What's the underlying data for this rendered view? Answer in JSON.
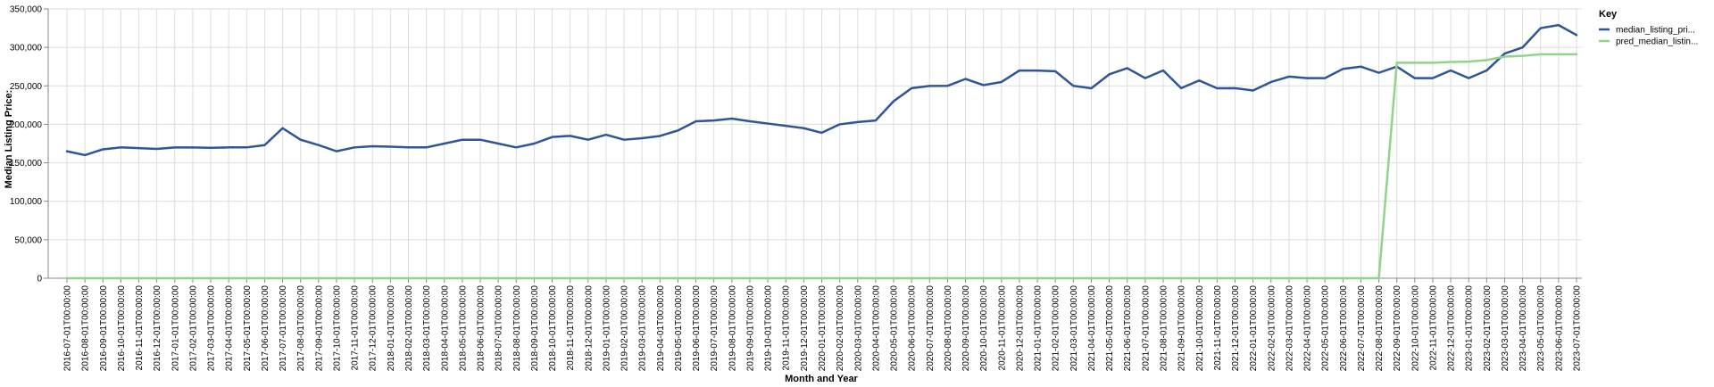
{
  "chart_data": {
    "type": "line",
    "xlabel": "Month and Year",
    "ylabel": "Median Listing Price:",
    "ylim": [
      0,
      350000
    ],
    "yticks": [
      "0",
      "50,000",
      "100,000",
      "150,000",
      "200,000",
      "250,000",
      "300,000",
      "350,000"
    ],
    "grid": true,
    "legend": {
      "title": "Key",
      "position": "top-right"
    },
    "x": [
      "2016-07-01T00:00:00",
      "2016-08-01T00:00:00",
      "2016-09-01T00:00:00",
      "2016-10-01T00:00:00",
      "2016-11-01T00:00:00",
      "2016-12-01T00:00:00",
      "2017-01-01T00:00:00",
      "2017-02-01T00:00:00",
      "2017-03-01T00:00:00",
      "2017-04-01T00:00:00",
      "2017-05-01T00:00:00",
      "2017-06-01T00:00:00",
      "2017-07-01T00:00:00",
      "2017-08-01T00:00:00",
      "2017-09-01T00:00:00",
      "2017-10-01T00:00:00",
      "2017-11-01T00:00:00",
      "2017-12-01T00:00:00",
      "2018-01-01T00:00:00",
      "2018-02-01T00:00:00",
      "2018-03-01T00:00:00",
      "2018-04-01T00:00:00",
      "2018-05-01T00:00:00",
      "2018-06-01T00:00:00",
      "2018-07-01T00:00:00",
      "2018-08-01T00:00:00",
      "2018-09-01T00:00:00",
      "2018-10-01T00:00:00",
      "2018-11-01T00:00:00",
      "2018-12-01T00:00:00",
      "2019-01-01T00:00:00",
      "2019-02-01T00:00:00",
      "2019-03-01T00:00:00",
      "2019-04-01T00:00:00",
      "2019-05-01T00:00:00",
      "2019-06-01T00:00:00",
      "2019-07-01T00:00:00",
      "2019-08-01T00:00:00",
      "2019-09-01T00:00:00",
      "2019-10-01T00:00:00",
      "2019-11-01T00:00:00",
      "2019-12-01T00:00:00",
      "2020-01-01T00:00:00",
      "2020-02-01T00:00:00",
      "2020-03-01T00:00:00",
      "2020-04-01T00:00:00",
      "2020-05-01T00:00:00",
      "2020-06-01T00:00:00",
      "2020-07-01T00:00:00",
      "2020-08-01T00:00:00",
      "2020-09-01T00:00:00",
      "2020-10-01T00:00:00",
      "2020-11-01T00:00:00",
      "2020-12-01T00:00:00",
      "2021-01-01T00:00:00",
      "2021-02-01T00:00:00",
      "2021-03-01T00:00:00",
      "2021-04-01T00:00:00",
      "2021-05-01T00:00:00",
      "2021-06-01T00:00:00",
      "2021-07-01T00:00:00",
      "2021-08-01T00:00:00",
      "2021-09-01T00:00:00",
      "2021-10-01T00:00:00",
      "2021-11-01T00:00:00",
      "2021-12-01T00:00:00",
      "2022-01-01T00:00:00",
      "2022-02-01T00:00:00",
      "2022-03-01T00:00:00",
      "2022-04-01T00:00:00",
      "2022-05-01T00:00:00",
      "2022-06-01T00:00:00",
      "2022-07-01T00:00:00",
      "2022-08-01T00:00:00",
      "2022-09-01T00:00:00",
      "2022-10-01T00:00:00",
      "2022-11-01T00:00:00",
      "2022-12-01T00:00:00",
      "2023-01-01T00:00:00",
      "2023-02-01T00:00:00",
      "2023-03-01T00:00:00",
      "2023-04-01T00:00:00",
      "2023-05-01T00:00:00",
      "2023-06-01T00:00:00",
      "2023-07-01T00:00:00"
    ],
    "series": [
      {
        "name": "median_listing_pri...",
        "color": "#2f5597",
        "values": [
          165000,
          160000,
          167500,
          170000,
          169000,
          168000,
          169900,
          169900,
          169500,
          170000,
          170000,
          173000,
          195000,
          180000,
          173000,
          165000,
          170000,
          171500,
          171000,
          170000,
          170000,
          175000,
          180000,
          180000,
          175000,
          170000,
          175000,
          183500,
          185000,
          180000,
          186500,
          180000,
          182000,
          184900,
          192000,
          204000,
          205000,
          207500,
          204000,
          201000,
          198000,
          195000,
          189000,
          200000,
          203000,
          205000,
          230000,
          247000,
          249900,
          250000,
          259000,
          251000,
          255000,
          269900,
          269900,
          269000,
          250000,
          246900,
          265000,
          273000,
          260000,
          270000,
          247000,
          257000,
          246900,
          247000,
          244000,
          255000,
          262000,
          260000,
          260000,
          272000,
          275000,
          267000,
          275000,
          260000,
          260000,
          270000,
          260000,
          270000,
          292000,
          300000,
          325000,
          329000,
          316000
        ]
      },
      {
        "name": "pred_median_listin...",
        "color": "#90d48a",
        "values": [
          0,
          0,
          0,
          0,
          0,
          0,
          0,
          0,
          0,
          0,
          0,
          0,
          0,
          0,
          0,
          0,
          0,
          0,
          0,
          0,
          0,
          0,
          0,
          0,
          0,
          0,
          0,
          0,
          0,
          0,
          0,
          0,
          0,
          0,
          0,
          0,
          0,
          0,
          0,
          0,
          0,
          0,
          0,
          0,
          0,
          0,
          0,
          0,
          0,
          0,
          0,
          0,
          0,
          0,
          0,
          0,
          0,
          0,
          0,
          0,
          0,
          0,
          0,
          0,
          0,
          0,
          0,
          0,
          0,
          0,
          0,
          0,
          0,
          0,
          280000,
          280000,
          280000,
          281000,
          281500,
          283500,
          288000,
          289000,
          291000,
          291000,
          291000
        ]
      }
    ]
  }
}
